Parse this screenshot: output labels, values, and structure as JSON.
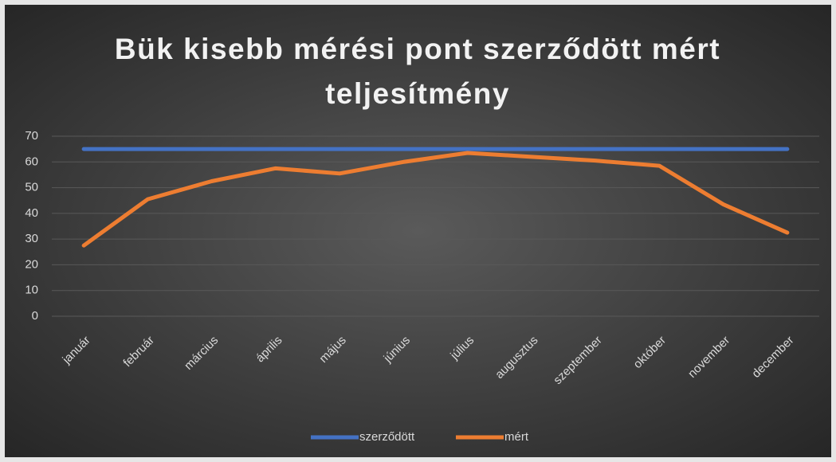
{
  "chart_data": {
    "type": "line",
    "title": "Bük kisebb mérési pont szerződött mért teljesítmény",
    "categories": [
      "január",
      "február",
      "március",
      "április",
      "május",
      "június",
      "július",
      "augusztus",
      "szeptember",
      "október",
      "november",
      "december"
    ],
    "series": [
      {
        "name": "szerződött",
        "color": "#4472c4",
        "values": [
          65,
          65,
          65,
          65,
          65,
          65,
          65,
          65,
          65,
          65,
          65,
          65
        ]
      },
      {
        "name": "mért",
        "color": "#ed7d31",
        "values": [
          27.5,
          45.5,
          52.5,
          57.5,
          55.5,
          60,
          63.5,
          62,
          60.5,
          58.5,
          43.5,
          32.5
        ]
      }
    ],
    "ylim": [
      0,
      70
    ],
    "yticks": [
      0,
      10,
      20,
      30,
      40,
      50,
      60,
      70
    ],
    "grid": true,
    "legend": "bottom"
  }
}
